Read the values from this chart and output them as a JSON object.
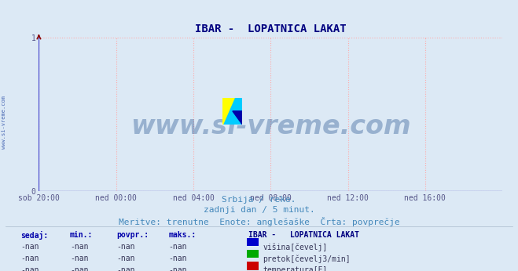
{
  "title": "IBAR -  LOPATNICA LAKAT",
  "title_color": "#000080",
  "title_fontsize": 10,
  "bg_color": "#dce9f5",
  "plot_bg_color": "#dce9f5",
  "grid_color_h": "#ffaaaa",
  "grid_color_v": "#ffaaaa",
  "axis_line_color": "#4444cc",
  "arrow_color": "#880000",
  "xlim_labels": [
    "sob 20:00",
    "ned 00:00",
    "ned 04:00",
    "ned 08:00",
    "ned 12:00",
    "ned 16:00"
  ],
  "ylim": [
    0,
    1
  ],
  "yticks": [
    0,
    1
  ],
  "watermark_text": "www.si-vreme.com",
  "watermark_color": "#1a4a8a",
  "watermark_alpha": 0.35,
  "left_label": "www.si-vreme.com",
  "left_label_color": "#3355aa",
  "subtitle_line1": "Srbija / reke.",
  "subtitle_line2": "zadnji dan / 5 minut.",
  "subtitle_line3": "Meritve: trenutne  Enote: anglešaške  Črta: povprečje",
  "subtitle_color": "#4488bb",
  "subtitle_fontsize": 8,
  "table_header": [
    "sedaj:",
    "min.:",
    "povpr.:",
    "maks.:"
  ],
  "table_values": [
    "-nan",
    "-nan",
    "-nan",
    "-nan"
  ],
  "legend_title": "IBAR -   LOPATNICA LAKAT",
  "legend_items": [
    {
      "label": "višina[čevelj]",
      "color": "#0000cc"
    },
    {
      "label": "pretok[čevelj3/min]",
      "color": "#00aa00"
    },
    {
      "label": "temperatura[F]",
      "color": "#cc0000"
    }
  ],
  "logo_yellow": "#ffff00",
  "logo_cyan": "#00ccff",
  "logo_blue": "#0000aa",
  "tick_color": "#555588",
  "tick_fontsize": 7
}
